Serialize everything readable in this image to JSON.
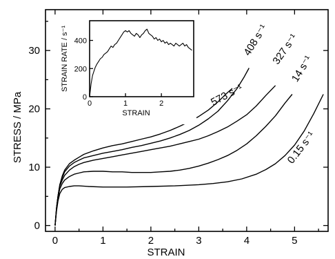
{
  "chart_data": [
    {
      "type": "line",
      "xlabel": "STRAIN",
      "ylabel": "STRESS / MPa",
      "xlim": [
        -0.2,
        5.7
      ],
      "ylim": [
        -1,
        37
      ],
      "xticks": [
        0,
        1,
        2,
        3,
        4,
        5
      ],
      "yticks": [
        0,
        10,
        20,
        30
      ],
      "grid": false,
      "series": [
        {
          "name": "573 s⁻¹",
          "label_angle": -28,
          "label_anchor": [
            3.3,
            20.5
          ],
          "x": [
            0,
            0.03,
            0.06,
            0.1,
            0.15,
            0.2,
            0.3,
            0.4,
            0.5,
            0.6,
            0.8,
            1.0,
            1.2,
            1.4,
            1.6,
            1.8,
            2.0,
            2.2,
            2.4,
            2.6,
            2.8,
            3.0,
            3.2,
            3.4,
            3.6,
            3.7
          ],
          "y": [
            0,
            3,
            5,
            7,
            8.5,
            9.5,
            10.6,
            11.2,
            11.7,
            12.2,
            12.8,
            13.3,
            13.7,
            14.0,
            14.4,
            14.8,
            15.2,
            15.7,
            16.3,
            17.0,
            17.8,
            18.7,
            19.8,
            21.2,
            22.8,
            23.5
          ]
        },
        {
          "name": "408 s⁻¹",
          "label_angle": -58,
          "label_anchor": [
            4.05,
            29.0
          ],
          "x": [
            0,
            0.03,
            0.06,
            0.1,
            0.15,
            0.2,
            0.3,
            0.4,
            0.5,
            0.6,
            0.8,
            1.0,
            1.2,
            1.4,
            1.6,
            1.8,
            2.0,
            2.2,
            2.4,
            2.6,
            2.8,
            3.0,
            3.2,
            3.4,
            3.6,
            3.8,
            3.95,
            4.05
          ],
          "y": [
            0,
            3,
            5,
            7,
            8.2,
            9.2,
            10.2,
            10.8,
            11.2,
            11.6,
            12.0,
            12.4,
            12.7,
            13.0,
            13.4,
            13.7,
            14.1,
            14.5,
            15.0,
            15.6,
            16.3,
            17.2,
            18.3,
            19.6,
            21.4,
            23.5,
            25.5,
            27.0
          ]
        },
        {
          "name": "327 s⁻¹",
          "label_angle": -55,
          "label_anchor": [
            4.65,
            27.5
          ],
          "x": [
            0,
            0.03,
            0.06,
            0.1,
            0.15,
            0.2,
            0.3,
            0.4,
            0.5,
            0.6,
            0.8,
            1.0,
            1.2,
            1.4,
            1.6,
            1.8,
            2.0,
            2.2,
            2.4,
            2.6,
            2.8,
            3.0,
            3.2,
            3.4,
            3.6,
            3.8,
            4.0,
            4.2,
            4.4,
            4.6
          ],
          "y": [
            0,
            3,
            5,
            6.8,
            7.8,
            8.6,
            9.5,
            10.1,
            10.5,
            10.8,
            11.2,
            11.5,
            11.8,
            12.1,
            12.4,
            12.7,
            13.0,
            13.3,
            13.6,
            14.0,
            14.4,
            14.8,
            15.4,
            16.1,
            16.9,
            17.9,
            19.0,
            20.5,
            22.3,
            24.0
          ]
        },
        {
          "name": "14 s⁻¹",
          "label_angle": -58,
          "label_anchor": [
            5.05,
            24.5
          ],
          "x": [
            0,
            0.03,
            0.06,
            0.1,
            0.15,
            0.2,
            0.3,
            0.4,
            0.5,
            0.6,
            0.8,
            1.0,
            1.2,
            1.4,
            1.6,
            1.8,
            2.0,
            2.2,
            2.4,
            2.6,
            2.8,
            3.0,
            3.2,
            3.4,
            3.6,
            3.8,
            4.0,
            4.2,
            4.4,
            4.6,
            4.8,
            4.95
          ],
          "y": [
            0,
            2.8,
            4.8,
            6.3,
            7.2,
            7.8,
            8.4,
            8.8,
            9.0,
            9.2,
            9.3,
            9.3,
            9.2,
            9.2,
            9.1,
            9.1,
            9.1,
            9.2,
            9.3,
            9.5,
            9.8,
            10.2,
            10.7,
            11.3,
            12.0,
            12.9,
            14.0,
            15.4,
            17.0,
            18.8,
            21.0,
            22.5
          ]
        },
        {
          "name": "0.15 s⁻¹",
          "label_angle": -52,
          "label_anchor": [
            4.95,
            10.5
          ],
          "x": [
            0,
            0.03,
            0.06,
            0.1,
            0.15,
            0.2,
            0.3,
            0.4,
            0.5,
            0.7,
            1.0,
            1.5,
            2.0,
            2.5,
            3.0,
            3.3,
            3.6,
            3.9,
            4.2,
            4.4,
            4.6,
            4.8,
            5.0,
            5.2,
            5.4,
            5.6
          ],
          "y": [
            0,
            2.5,
            4.2,
            5.5,
            6.2,
            6.5,
            6.7,
            6.8,
            6.8,
            6.7,
            6.6,
            6.6,
            6.7,
            6.8,
            7.0,
            7.2,
            7.5,
            8.0,
            8.8,
            9.6,
            10.6,
            12.0,
            13.8,
            16.2,
            19.2,
            22.5
          ]
        }
      ]
    },
    {
      "type": "line",
      "xlabel": "STRAIN",
      "ylabel": "STRAIN RATE / s⁻¹",
      "xlim": [
        0,
        2.9
      ],
      "ylim": [
        0,
        540
      ],
      "xticks": [
        0,
        1,
        2
      ],
      "yticks": [
        0,
        200,
        400
      ],
      "grid": false,
      "series": [
        {
          "x": [
            0,
            0.04,
            0.08,
            0.12,
            0.16,
            0.2,
            0.25,
            0.3,
            0.35,
            0.4,
            0.45,
            0.5,
            0.55,
            0.6,
            0.65,
            0.7,
            0.75,
            0.8,
            0.85,
            0.9,
            0.95,
            1.0,
            1.05,
            1.1,
            1.15,
            1.2,
            1.25,
            1.3,
            1.35,
            1.4,
            1.45,
            1.5,
            1.55,
            1.6,
            1.65,
            1.7,
            1.75,
            1.8,
            1.85,
            1.9,
            1.95,
            2.0,
            2.05,
            2.1,
            2.15,
            2.2,
            2.25,
            2.3,
            2.35,
            2.4,
            2.45,
            2.5,
            2.55,
            2.6,
            2.65,
            2.7,
            2.75,
            2.8,
            2.85
          ],
          "y": [
            0,
            90,
            150,
            180,
            210,
            230,
            250,
            270,
            280,
            300,
            310,
            320,
            340,
            360,
            350,
            370,
            380,
            400,
            420,
            440,
            460,
            470,
            460,
            470,
            450,
            440,
            430,
            450,
            440,
            420,
            440,
            450,
            470,
            480,
            450,
            440,
            430,
            410,
            420,
            400,
            410,
            390,
            400,
            380,
            390,
            370,
            380,
            370,
            360,
            380,
            370,
            360,
            370,
            380,
            360,
            370,
            350,
            340,
            330
          ]
        }
      ]
    }
  ]
}
